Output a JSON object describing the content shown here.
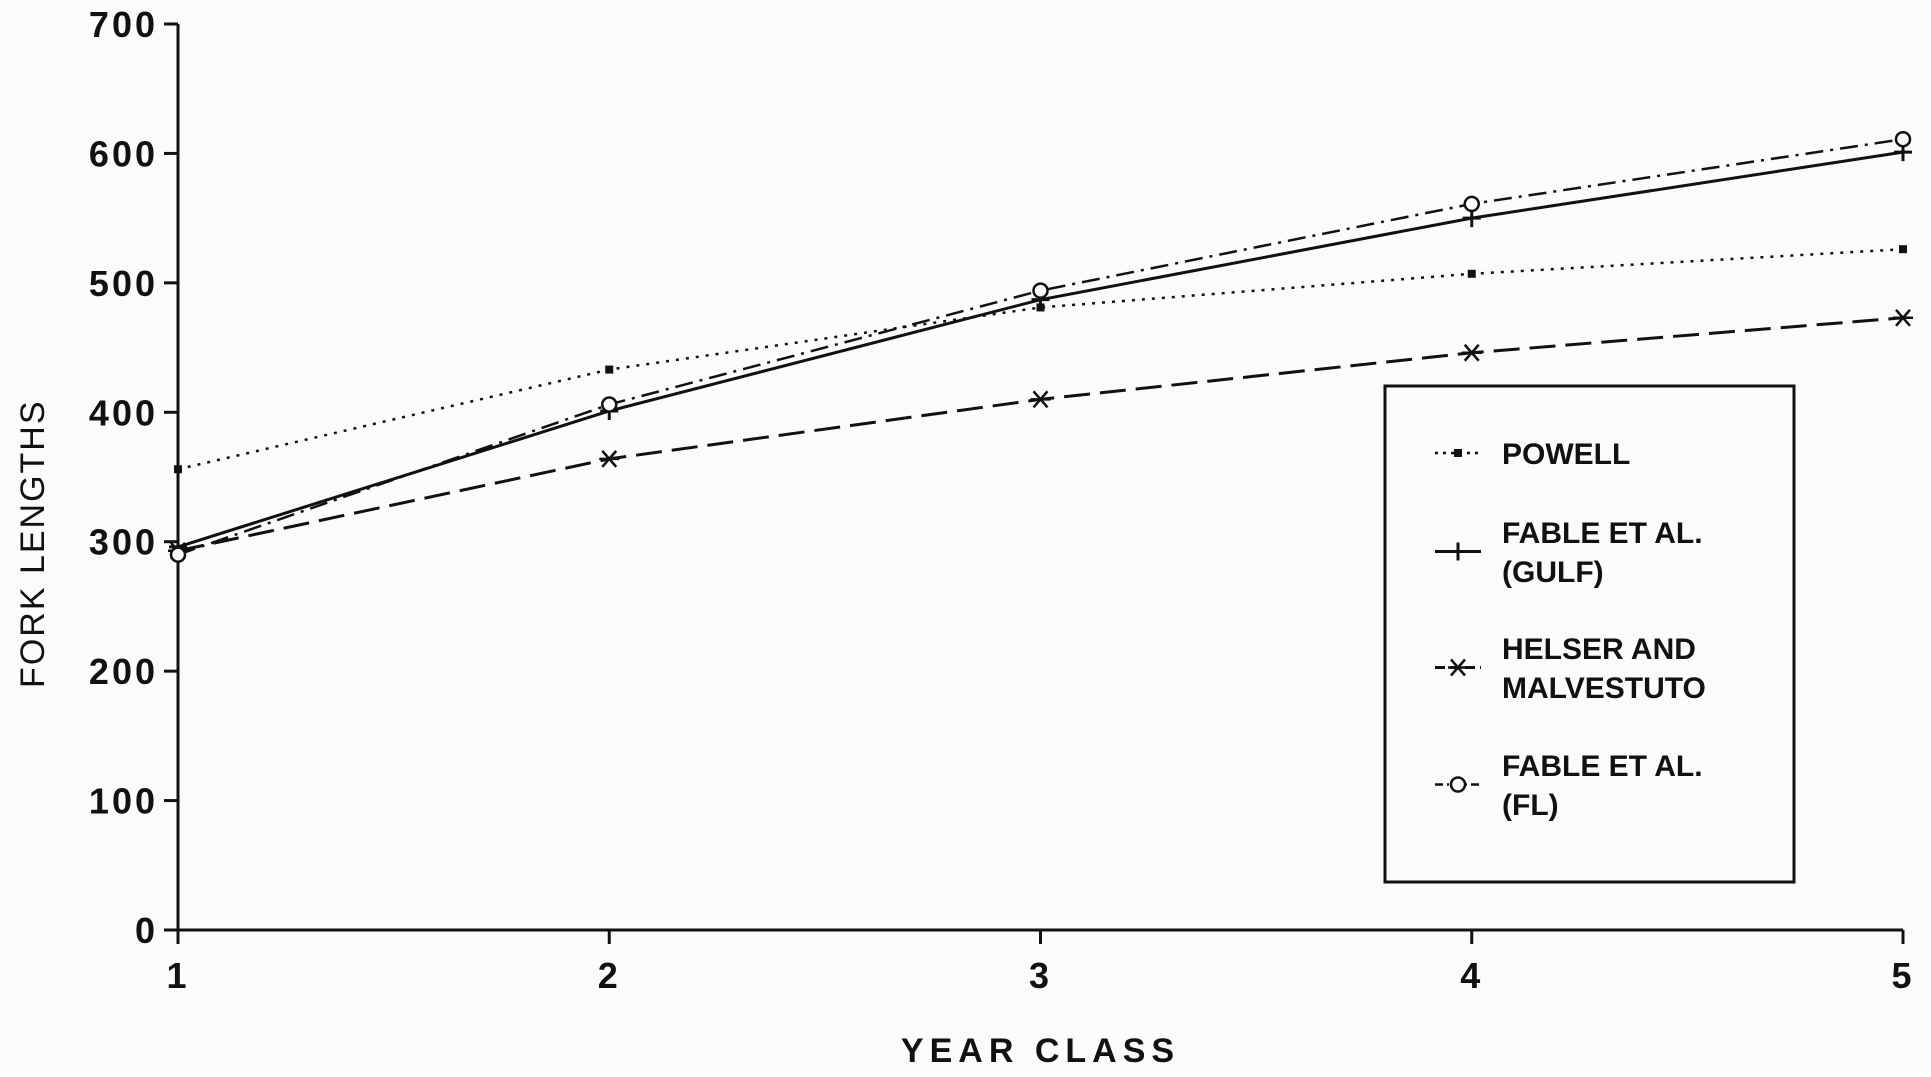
{
  "chart_data": {
    "type": "line",
    "title": "",
    "xlabel": "YEAR CLASS",
    "ylabel": "FORK LENGTHS",
    "x": [
      1,
      2,
      3,
      4,
      5
    ],
    "xlim": [
      1,
      5
    ],
    "ylim": [
      0,
      700
    ],
    "x_ticks": [
      1,
      2,
      3,
      4,
      5
    ],
    "y_ticks": [
      0,
      100,
      200,
      300,
      400,
      500,
      600,
      700
    ],
    "grid": false,
    "legend_position": "right-center",
    "series": [
      {
        "name": "POWELL",
        "line_style": "dotted",
        "marker": "dot",
        "values": [
          356,
          433,
          481,
          507,
          526
        ]
      },
      {
        "name": "FABLE ET AL.\n(GULF)",
        "line_style": "solid",
        "marker": "plus",
        "values": [
          296,
          401,
          487,
          550,
          601
        ]
      },
      {
        "name": "HELSER AND\nMALVESTUTO",
        "line_style": "dashed",
        "marker": "asterisk",
        "values": [
          293,
          364,
          410,
          446,
          473
        ]
      },
      {
        "name": "FABLE ET AL.\n(FL)",
        "line_style": "dash-dot",
        "marker": "circle",
        "values": [
          290,
          406,
          494,
          561,
          611
        ]
      }
    ]
  }
}
